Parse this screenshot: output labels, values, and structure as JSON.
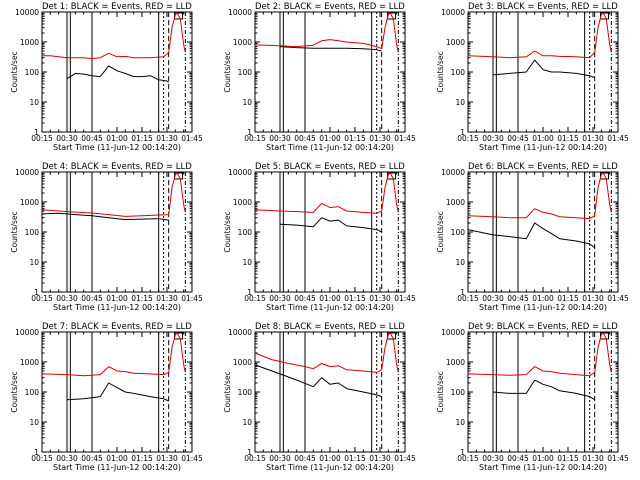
{
  "colors": {
    "events": "#000000",
    "lld": "#dd0000",
    "frame": "#000000",
    "background": "#ffffff"
  },
  "chart_data": [
    {
      "type": "line",
      "title": "Det 1: BLACK = Events, RED = LLD",
      "xlabel": "Start Time (11-Jun-12 00:14:20)",
      "ylabel": "Counts/sec",
      "yscale": "log",
      "ylim": [
        1,
        10000
      ],
      "x_tick_labels": [
        "00:15",
        "00:30",
        "00:45",
        "01:00",
        "01:15",
        "01:30",
        "01:45"
      ],
      "y_tick_labels": [
        "1",
        "10",
        "100",
        "1000",
        "10000"
      ],
      "series": [
        {
          "name": "Events",
          "color": "#000000",
          "x": [
            30,
            35,
            40,
            45,
            50,
            55,
            60,
            65,
            70,
            75,
            80,
            85,
            90,
            91
          ],
          "y": [
            60,
            90,
            85,
            75,
            70,
            160,
            110,
            90,
            70,
            70,
            75,
            55,
            50,
            45
          ]
        },
        {
          "name": "LLD",
          "color": "#dd0000",
          "x": [
            15,
            20,
            30,
            40,
            45,
            50,
            55,
            60,
            65,
            70,
            80,
            88,
            91,
            93,
            95,
            96,
            98,
            100,
            101
          ],
          "y": [
            350,
            350,
            300,
            300,
            280,
            300,
            420,
            320,
            330,
            300,
            300,
            320,
            450,
            3000,
            8000,
            9500,
            6000,
            800,
            450
          ]
        }
      ]
    },
    {
      "type": "line",
      "title": "Det 2: BLACK = Events, RED = LLD",
      "xlabel": "Start Time (11-Jun-12 00:14:20)",
      "ylabel": "Counts/sec",
      "yscale": "log",
      "ylim": [
        1,
        10000
      ],
      "x_tick_labels": [
        "00:15",
        "00:30",
        "00:45",
        "01:00",
        "01:15",
        "01:30",
        "01:45"
      ],
      "y_tick_labels": [
        "1",
        "10",
        "100",
        "1000",
        "10000"
      ],
      "series": [
        {
          "name": "Events",
          "color": "#000000",
          "x": [
            30,
            40,
            50,
            60,
            70,
            80,
            88,
            91
          ],
          "y": [
            700,
            650,
            620,
            620,
            620,
            600,
            550,
            500
          ]
        },
        {
          "name": "LLD",
          "color": "#dd0000",
          "x": [
            15,
            30,
            40,
            50,
            55,
            60,
            65,
            70,
            80,
            88,
            91,
            93,
            95,
            96,
            98,
            100,
            101
          ],
          "y": [
            800,
            750,
            700,
            780,
            1100,
            1200,
            1100,
            1000,
            900,
            700,
            600,
            3000,
            8000,
            9500,
            6000,
            800,
            450
          ]
        }
      ]
    },
    {
      "type": "line",
      "title": "Det 3: BLACK = Events, RED = LLD",
      "xlabel": "Start Time (11-Jun-12 00:14:20)",
      "ylabel": "Counts/sec",
      "yscale": "log",
      "ylim": [
        1,
        10000
      ],
      "x_tick_labels": [
        "00:15",
        "00:30",
        "00:45",
        "01:00",
        "01:15",
        "01:30",
        "01:45"
      ],
      "y_tick_labels": [
        "1",
        "10",
        "100",
        "1000",
        "10000"
      ],
      "series": [
        {
          "name": "Events",
          "color": "#000000",
          "x": [
            30,
            40,
            50,
            55,
            60,
            65,
            70,
            80,
            88,
            91
          ],
          "y": [
            80,
            90,
            100,
            250,
            120,
            100,
            100,
            90,
            75,
            65
          ]
        },
        {
          "name": "LLD",
          "color": "#dd0000",
          "x": [
            15,
            30,
            40,
            50,
            55,
            60,
            65,
            70,
            80,
            88,
            91,
            93,
            95,
            96,
            98,
            100,
            101
          ],
          "y": [
            350,
            320,
            300,
            320,
            500,
            350,
            350,
            330,
            320,
            300,
            450,
            3000,
            8000,
            9500,
            6000,
            800,
            450
          ]
        }
      ]
    },
    {
      "type": "line",
      "title": "Det 4: BLACK = Events, RED = LLD",
      "xlabel": "Start Time (11-Jun-12 00:14:20)",
      "ylabel": "Counts/sec",
      "yscale": "log",
      "ylim": [
        1,
        10000
      ],
      "x_tick_labels": [
        "00:15",
        "00:30",
        "00:45",
        "01:00",
        "01:15",
        "01:30",
        "01:45"
      ],
      "y_tick_labels": [
        "1",
        "10",
        "100",
        "1000",
        "10000"
      ],
      "series": [
        {
          "name": "Events",
          "color": "#000000",
          "x": [
            15,
            25,
            35,
            45,
            55,
            65,
            75,
            85,
            91
          ],
          "y": [
            400,
            420,
            380,
            350,
            300,
            260,
            270,
            280,
            250
          ]
        },
        {
          "name": "LLD",
          "color": "#dd0000",
          "x": [
            15,
            25,
            35,
            45,
            55,
            65,
            75,
            85,
            91,
            93,
            95,
            96,
            98,
            100,
            101
          ],
          "y": [
            550,
            500,
            460,
            430,
            380,
            330,
            350,
            370,
            380,
            3000,
            8000,
            9500,
            6000,
            800,
            450
          ]
        }
      ]
    },
    {
      "type": "line",
      "title": "Det 5: BLACK = Events, RED = LLD",
      "xlabel": "Start Time (11-Jun-12 00:14:20)",
      "ylabel": "Counts/sec",
      "yscale": "log",
      "ylim": [
        1,
        10000
      ],
      "x_tick_labels": [
        "00:15",
        "00:30",
        "00:45",
        "01:00",
        "01:15",
        "01:30",
        "01:45"
      ],
      "y_tick_labels": [
        "1",
        "10",
        "100",
        "1000",
        "10000"
      ],
      "series": [
        {
          "name": "Events",
          "color": "#000000",
          "x": [
            30,
            40,
            50,
            55,
            60,
            65,
            70,
            80,
            88,
            91
          ],
          "y": [
            180,
            170,
            150,
            300,
            230,
            250,
            160,
            140,
            120,
            100
          ]
        },
        {
          "name": "LLD",
          "color": "#dd0000",
          "x": [
            15,
            30,
            40,
            50,
            55,
            60,
            65,
            70,
            80,
            88,
            91,
            93,
            95,
            96,
            98,
            100,
            101
          ],
          "y": [
            550,
            500,
            480,
            450,
            900,
            650,
            700,
            500,
            450,
            420,
            500,
            3000,
            8000,
            9500,
            6000,
            800,
            450
          ]
        }
      ]
    },
    {
      "type": "line",
      "title": "Det 6: BLACK = Events, RED = LLD",
      "xlabel": "Start Time (11-Jun-12 00:14:20)",
      "ylabel": "Counts/sec",
      "yscale": "log",
      "ylim": [
        1,
        10000
      ],
      "x_tick_labels": [
        "00:15",
        "00:30",
        "00:45",
        "01:00",
        "01:15",
        "01:30",
        "01:45"
      ],
      "y_tick_labels": [
        "1",
        "10",
        "100",
        "1000",
        "10000"
      ],
      "series": [
        {
          "name": "Events",
          "color": "#000000",
          "x": [
            15,
            30,
            40,
            50,
            55,
            60,
            65,
            70,
            80,
            88,
            91
          ],
          "y": [
            120,
            80,
            70,
            60,
            200,
            130,
            90,
            60,
            50,
            40,
            30
          ]
        },
        {
          "name": "LLD",
          "color": "#dd0000",
          "x": [
            15,
            30,
            40,
            50,
            55,
            60,
            65,
            70,
            80,
            88,
            91,
            93,
            95,
            96,
            98,
            100,
            101
          ],
          "y": [
            350,
            320,
            300,
            300,
            600,
            450,
            400,
            320,
            300,
            280,
            350,
            3000,
            8000,
            9500,
            6000,
            800,
            450
          ]
        }
      ]
    },
    {
      "type": "line",
      "title": "Det 7: BLACK = Events, RED = LLD",
      "xlabel": "Start Time (11-Jun-12 00:14:20)",
      "ylabel": "Counts/sec",
      "yscale": "log",
      "ylim": [
        1,
        10000
      ],
      "x_tick_labels": [
        "00:15",
        "00:30",
        "00:45",
        "01:00",
        "01:15",
        "01:30",
        "01:45"
      ],
      "y_tick_labels": [
        "1",
        "10",
        "100",
        "1000",
        "10000"
      ],
      "series": [
        {
          "name": "Events",
          "color": "#000000",
          "x": [
            30,
            40,
            50,
            55,
            60,
            65,
            70,
            80,
            88,
            91
          ],
          "y": [
            55,
            60,
            70,
            200,
            140,
            100,
            90,
            70,
            60,
            50
          ]
        },
        {
          "name": "LLD",
          "color": "#dd0000",
          "x": [
            15,
            30,
            40,
            50,
            55,
            60,
            65,
            70,
            80,
            88,
            91,
            93,
            95,
            96,
            98,
            100,
            101
          ],
          "y": [
            400,
            380,
            350,
            380,
            700,
            500,
            480,
            420,
            400,
            380,
            450,
            3000,
            8000,
            9500,
            6000,
            800,
            450
          ]
        }
      ]
    },
    {
      "type": "line",
      "title": "Det 8: BLACK = Events, RED = LLD",
      "xlabel": "Start Time (11-Jun-12 00:14:20)",
      "ylabel": "Counts/sec",
      "yscale": "log",
      "ylim": [
        1,
        10000
      ],
      "x_tick_labels": [
        "00:15",
        "00:30",
        "00:45",
        "01:00",
        "01:15",
        "01:30",
        "01:45"
      ],
      "y_tick_labels": [
        "1",
        "10",
        "100",
        "1000",
        "10000"
      ],
      "series": [
        {
          "name": "Events",
          "color": "#000000",
          "x": [
            15,
            30,
            40,
            50,
            55,
            60,
            65,
            70,
            80,
            88,
            91
          ],
          "y": [
            800,
            400,
            250,
            150,
            300,
            180,
            200,
            130,
            100,
            80,
            70
          ]
        },
        {
          "name": "LLD",
          "color": "#dd0000",
          "x": [
            15,
            25,
            35,
            45,
            50,
            55,
            60,
            65,
            70,
            80,
            88,
            91,
            93,
            95,
            96,
            98,
            100,
            101
          ],
          "y": [
            2000,
            1200,
            900,
            700,
            600,
            900,
            700,
            750,
            550,
            500,
            450,
            550,
            3000,
            8000,
            9500,
            6000,
            800,
            450
          ]
        }
      ]
    },
    {
      "type": "line",
      "title": "Det 9: BLACK = Events, RED = LLD",
      "xlabel": "Start Time (11-Jun-12 00:14:20)",
      "ylabel": "Counts/sec",
      "yscale": "log",
      "ylim": [
        1,
        10000
      ],
      "x_tick_labels": [
        "00:15",
        "00:30",
        "00:45",
        "01:00",
        "01:15",
        "01:30",
        "01:45"
      ],
      "y_tick_labels": [
        "1",
        "10",
        "100",
        "1000",
        "10000"
      ],
      "series": [
        {
          "name": "Events",
          "color": "#000000",
          "x": [
            30,
            40,
            50,
            55,
            60,
            65,
            70,
            80,
            88,
            91
          ],
          "y": [
            100,
            90,
            90,
            250,
            180,
            150,
            110,
            90,
            70,
            55
          ]
        },
        {
          "name": "LLD",
          "color": "#dd0000",
          "x": [
            15,
            30,
            40,
            50,
            55,
            60,
            65,
            70,
            80,
            88,
            91,
            93,
            95,
            96,
            98,
            100,
            101
          ],
          "y": [
            400,
            380,
            360,
            380,
            700,
            500,
            480,
            420,
            380,
            350,
            450,
            3000,
            8000,
            9500,
            6000,
            800,
            450
          ]
        }
      ]
    }
  ]
}
